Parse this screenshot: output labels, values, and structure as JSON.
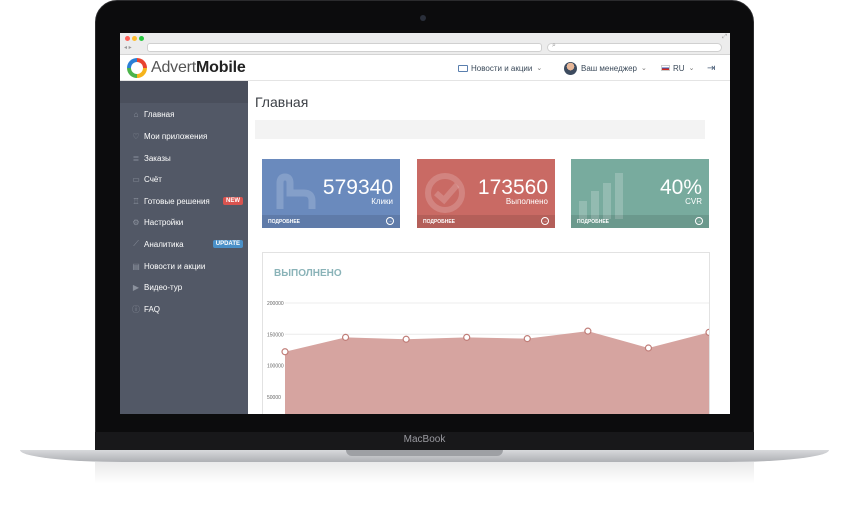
{
  "device": {
    "label": "MacBook"
  },
  "app": {
    "logo_part1": "Advert",
    "logo_part2": "Mobile"
  },
  "header": {
    "news_label": "Новости и акции",
    "manager_label": "Ваш менеджер",
    "lang_label": "RU"
  },
  "sidebar": {
    "items": [
      {
        "label": "Главная",
        "icon": "home-icon",
        "active": true
      },
      {
        "label": "Мои приложения",
        "icon": "apps-icon"
      },
      {
        "label": "Заказы",
        "icon": "orders-icon"
      },
      {
        "label": "Счёт",
        "icon": "wallet-icon"
      },
      {
        "label": "Готовые решения",
        "icon": "trophy-icon",
        "badge": "NEW"
      },
      {
        "label": "Настройки",
        "icon": "gear-icon"
      },
      {
        "label": "Аналитика",
        "icon": "analytics-icon",
        "badge": "UPDATE"
      },
      {
        "label": "Новости и акции",
        "icon": "news-icon"
      },
      {
        "label": "Видео-тур",
        "icon": "video-icon"
      },
      {
        "label": "FAQ",
        "icon": "info-icon"
      }
    ]
  },
  "main": {
    "title": "Главная",
    "cards": [
      {
        "value": "579340",
        "label": "Клики",
        "more": "ПОДРОБНЕЕ",
        "color": "#6a8abd"
      },
      {
        "value": "173560",
        "label": "Выполнено",
        "more": "ПОДРОБНЕЕ",
        "color": "#c96a64"
      },
      {
        "value": "40%",
        "label": "CVR",
        "more": "ПОДРОБНЕЕ",
        "color": "#78ab9e"
      }
    ],
    "chart_title": "ВЫПОЛНЕНО"
  },
  "chart_data": {
    "type": "area",
    "title": "ВЫПОЛНЕНО",
    "yticks": [
      "200000",
      "150000",
      "100000",
      "50000"
    ],
    "ylim": [
      0,
      200000
    ],
    "series": [
      {
        "values": [
          122000,
          145000,
          142000,
          145000,
          143000,
          155000,
          128000,
          153000
        ]
      }
    ],
    "fill_color": "#d6a4a0",
    "grid": true
  }
}
